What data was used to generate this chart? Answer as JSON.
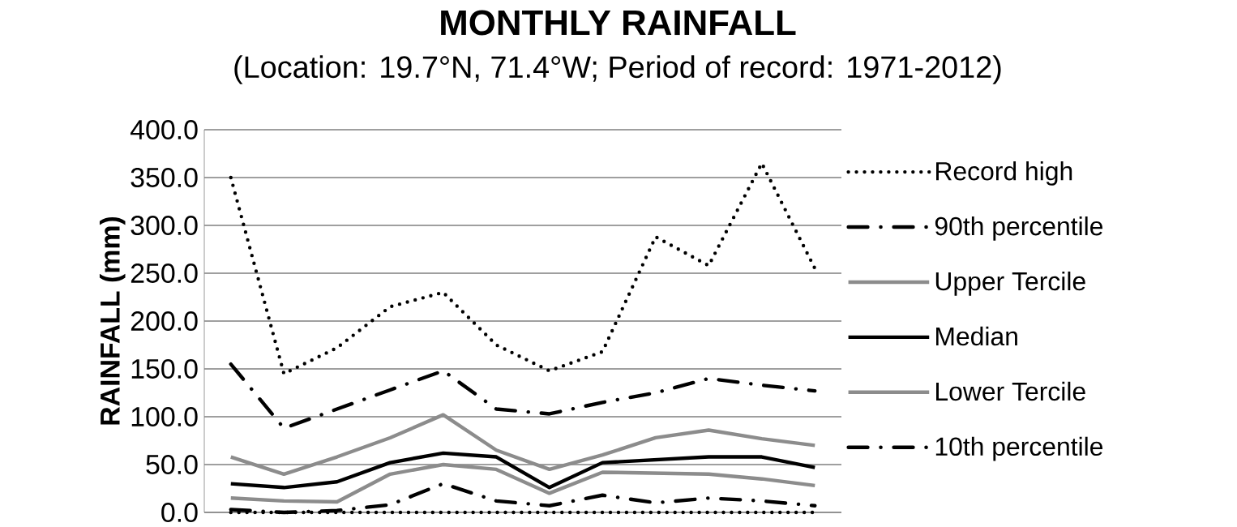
{
  "chart_data": {
    "type": "line",
    "title": "MONTHLY RAINFALL",
    "subtitle": "(Location: 19.7°N, 71.4°W; Period of record: 1971-2012)",
    "ylabel": "RAINFALL (mm)",
    "categories": [
      null,
      null,
      null,
      null,
      null,
      null,
      null,
      null,
      null,
      null,
      null,
      null
    ],
    "ylim": [
      0,
      400
    ],
    "yticks": [
      {
        "value": 0,
        "label": "0.0"
      },
      {
        "value": 50,
        "label": "50.0"
      },
      {
        "value": 100,
        "label": "100.0"
      },
      {
        "value": 150,
        "label": "150.0"
      },
      {
        "value": 200,
        "label": "200.0"
      },
      {
        "value": 250,
        "label": "250.0"
      },
      {
        "value": 300,
        "label": "300.0"
      },
      {
        "value": 350,
        "label": "350.0"
      },
      {
        "value": 400,
        "label": "400.0"
      }
    ],
    "grid": "y",
    "legend": "right",
    "marker": "none",
    "series": [
      {
        "name": "Record high",
        "color": "#000000",
        "line_style": "dotted",
        "values": [
          350,
          145,
          172,
          215,
          230,
          175,
          148,
          168,
          288,
          258,
          365,
          255
        ]
      },
      {
        "name": "90th percentile",
        "color": "#000000",
        "line_style": "dashdot",
        "values": [
          155,
          88,
          108,
          128,
          148,
          108,
          103,
          115,
          125,
          140,
          133,
          127
        ]
      },
      {
        "name": "Upper Tercile",
        "color": "#8c8c8c",
        "line_style": "solid",
        "values": [
          58,
          40,
          58,
          78,
          102,
          65,
          45,
          60,
          78,
          86,
          77,
          70
        ]
      },
      {
        "name": "Median",
        "color": "#000000",
        "line_style": "solid",
        "values": [
          30,
          26,
          32,
          52,
          62,
          58,
          26,
          52,
          55,
          58,
          58,
          47
        ]
      },
      {
        "name": "Lower Tercile",
        "color": "#8c8c8c",
        "line_style": "solid",
        "values": [
          15,
          12,
          11,
          40,
          50,
          45,
          20,
          42,
          41,
          40,
          35,
          28
        ]
      },
      {
        "name": "10th percentile",
        "color": "#000000",
        "line_style": "dashdot",
        "values": [
          3,
          0,
          2,
          8,
          30,
          12,
          7,
          18,
          10,
          15,
          12,
          7
        ]
      },
      {
        "color": "#000000",
        "line_style": "dotted",
        "values": [
          0,
          0,
          0,
          0,
          0,
          0,
          0,
          0,
          0,
          0,
          0,
          0
        ]
      }
    ]
  }
}
